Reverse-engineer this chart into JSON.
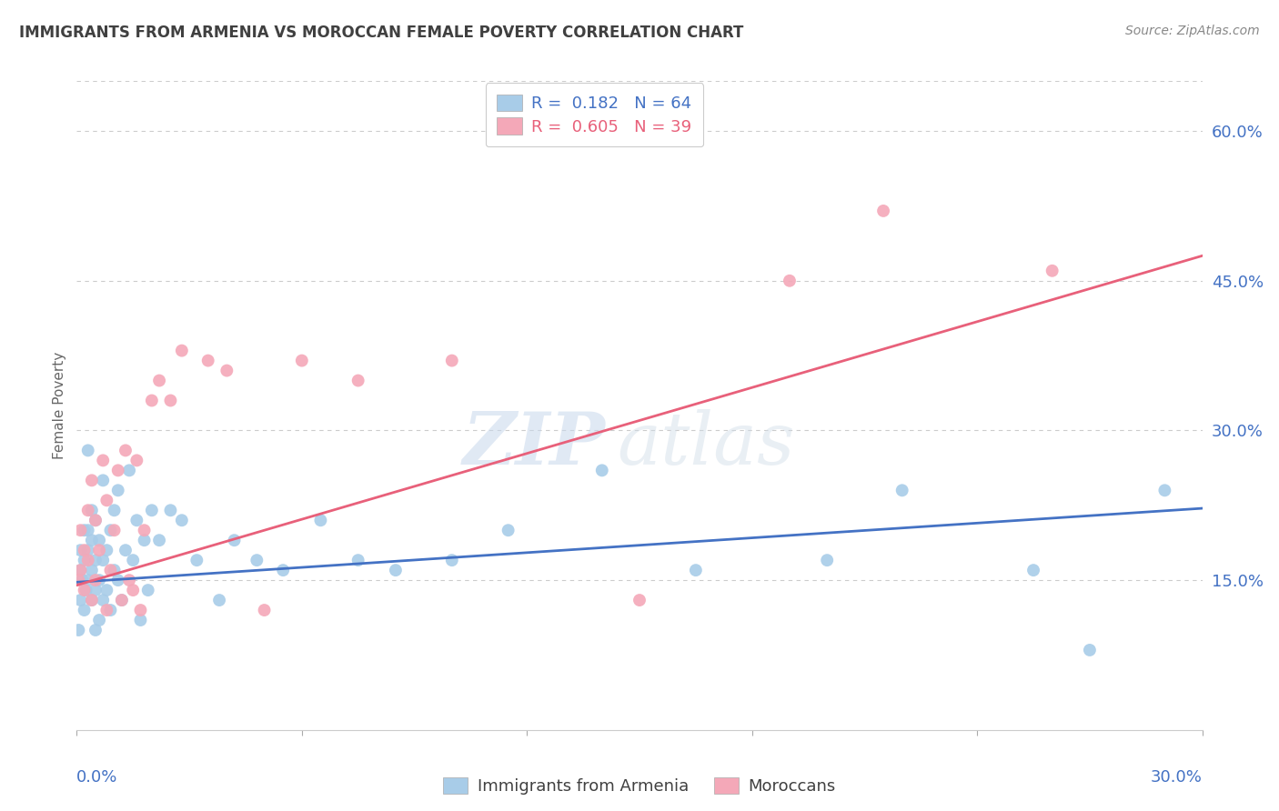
{
  "title": "IMMIGRANTS FROM ARMENIA VS MOROCCAN FEMALE POVERTY CORRELATION CHART",
  "source": "Source: ZipAtlas.com",
  "ylabel": "Female Poverty",
  "right_yticks": [
    "60.0%",
    "45.0%",
    "30.0%",
    "15.0%"
  ],
  "right_ytick_values": [
    0.6,
    0.45,
    0.3,
    0.15
  ],
  "legend_blue_r": "R =  0.182",
  "legend_blue_n": "N = 64",
  "legend_pink_r": "R =  0.605",
  "legend_pink_n": "N = 39",
  "legend_blue_label": "Immigrants from Armenia",
  "legend_pink_label": "Moroccans",
  "blue_color": "#a8cce8",
  "pink_color": "#f4a8b8",
  "blue_line_color": "#4472c4",
  "pink_line_color": "#e8607a",
  "watermark_zip": "ZIP",
  "watermark_atlas": "atlas",
  "background_color": "#ffffff",
  "grid_color": "#cccccc",
  "axis_label_color": "#4472c4",
  "title_color": "#404040",
  "source_color": "#888888",
  "xmin": 0.0,
  "xmax": 0.3,
  "ymin": 0.0,
  "ymax": 0.65,
  "blue_scatter_x": [
    0.0005,
    0.001,
    0.001,
    0.001,
    0.0015,
    0.002,
    0.002,
    0.002,
    0.0025,
    0.003,
    0.003,
    0.003,
    0.003,
    0.004,
    0.004,
    0.004,
    0.004,
    0.005,
    0.005,
    0.005,
    0.005,
    0.006,
    0.006,
    0.006,
    0.007,
    0.007,
    0.007,
    0.008,
    0.008,
    0.009,
    0.009,
    0.01,
    0.01,
    0.011,
    0.011,
    0.012,
    0.013,
    0.014,
    0.015,
    0.016,
    0.017,
    0.018,
    0.019,
    0.02,
    0.022,
    0.025,
    0.028,
    0.032,
    0.038,
    0.042,
    0.048,
    0.055,
    0.065,
    0.075,
    0.085,
    0.1,
    0.115,
    0.14,
    0.165,
    0.2,
    0.22,
    0.255,
    0.27,
    0.29
  ],
  "blue_scatter_y": [
    0.1,
    0.13,
    0.16,
    0.18,
    0.15,
    0.12,
    0.17,
    0.2,
    0.14,
    0.15,
    0.18,
    0.2,
    0.28,
    0.13,
    0.16,
    0.19,
    0.22,
    0.1,
    0.14,
    0.17,
    0.21,
    0.11,
    0.15,
    0.19,
    0.13,
    0.17,
    0.25,
    0.14,
    0.18,
    0.12,
    0.2,
    0.16,
    0.22,
    0.15,
    0.24,
    0.13,
    0.18,
    0.26,
    0.17,
    0.21,
    0.11,
    0.19,
    0.14,
    0.22,
    0.19,
    0.22,
    0.21,
    0.17,
    0.13,
    0.19,
    0.17,
    0.16,
    0.21,
    0.17,
    0.16,
    0.17,
    0.2,
    0.26,
    0.16,
    0.17,
    0.24,
    0.16,
    0.08,
    0.24
  ],
  "pink_scatter_x": [
    0.0005,
    0.001,
    0.001,
    0.002,
    0.002,
    0.003,
    0.003,
    0.004,
    0.004,
    0.005,
    0.005,
    0.006,
    0.007,
    0.008,
    0.008,
    0.009,
    0.01,
    0.011,
    0.012,
    0.013,
    0.014,
    0.015,
    0.016,
    0.017,
    0.018,
    0.02,
    0.022,
    0.025,
    0.028,
    0.035,
    0.04,
    0.05,
    0.06,
    0.075,
    0.1,
    0.15,
    0.19,
    0.215,
    0.26
  ],
  "pink_scatter_y": [
    0.15,
    0.16,
    0.2,
    0.14,
    0.18,
    0.17,
    0.22,
    0.13,
    0.25,
    0.15,
    0.21,
    0.18,
    0.27,
    0.12,
    0.23,
    0.16,
    0.2,
    0.26,
    0.13,
    0.28,
    0.15,
    0.14,
    0.27,
    0.12,
    0.2,
    0.33,
    0.35,
    0.33,
    0.38,
    0.37,
    0.36,
    0.12,
    0.37,
    0.35,
    0.37,
    0.13,
    0.45,
    0.52,
    0.46
  ],
  "blue_trend_x": [
    0.0,
    0.3
  ],
  "blue_trend_y": [
    0.148,
    0.222
  ],
  "pink_trend_x": [
    0.0,
    0.3
  ],
  "pink_trend_y": [
    0.145,
    0.475
  ]
}
